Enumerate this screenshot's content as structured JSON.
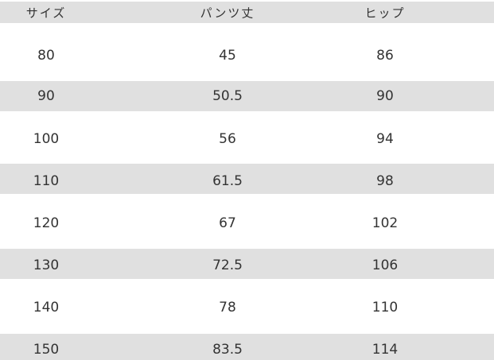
{
  "table": {
    "headers": [
      "サイズ",
      "パンツ丈",
      "ヒップ"
    ],
    "rows": [
      [
        "80",
        "45",
        "86"
      ],
      [
        "90",
        "50.5",
        "90"
      ],
      [
        "100",
        "56",
        "94"
      ],
      [
        "110",
        "61.5",
        "98"
      ],
      [
        "120",
        "67",
        "102"
      ],
      [
        "130",
        "72.5",
        "106"
      ],
      [
        "140",
        "78",
        "110"
      ],
      [
        "150",
        "83.5",
        "114"
      ]
    ]
  },
  "colors": {
    "stripe": "#e0e0e0",
    "text": "#333333"
  }
}
